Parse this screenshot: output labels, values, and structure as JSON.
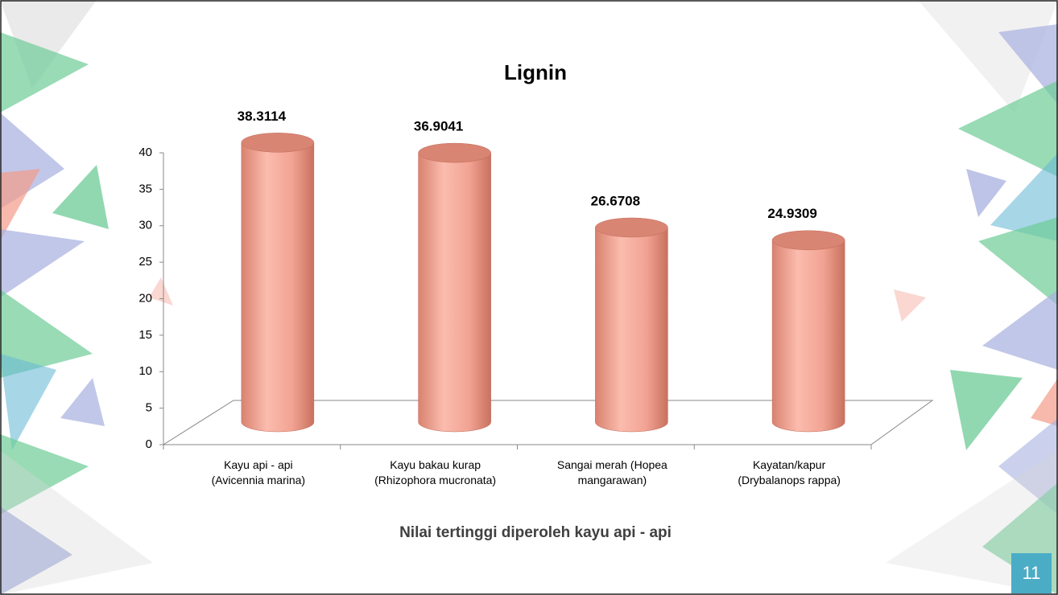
{
  "chart_data": {
    "type": "bar",
    "title": "Lignin",
    "categories": [
      "Kayu api - api\n(Avicennia marina)",
      "Kayu bakau kurap\n(Rhizophora mucronata)",
      "Sangai merah (Hopea\nmangarawan)",
      "Kayatan/kapur\n(Drybalanops rappa)"
    ],
    "values": [
      38.3114,
      36.9041,
      26.6708,
      24.9309
    ],
    "color": "#f2a393",
    "ylim": [
      0,
      40
    ],
    "yticks": [
      0,
      5,
      10,
      15,
      20,
      25,
      30,
      35,
      40
    ],
    "annotation": "Nilai tertinggi diperoleh kayu api - api"
  },
  "slide_number": "11"
}
